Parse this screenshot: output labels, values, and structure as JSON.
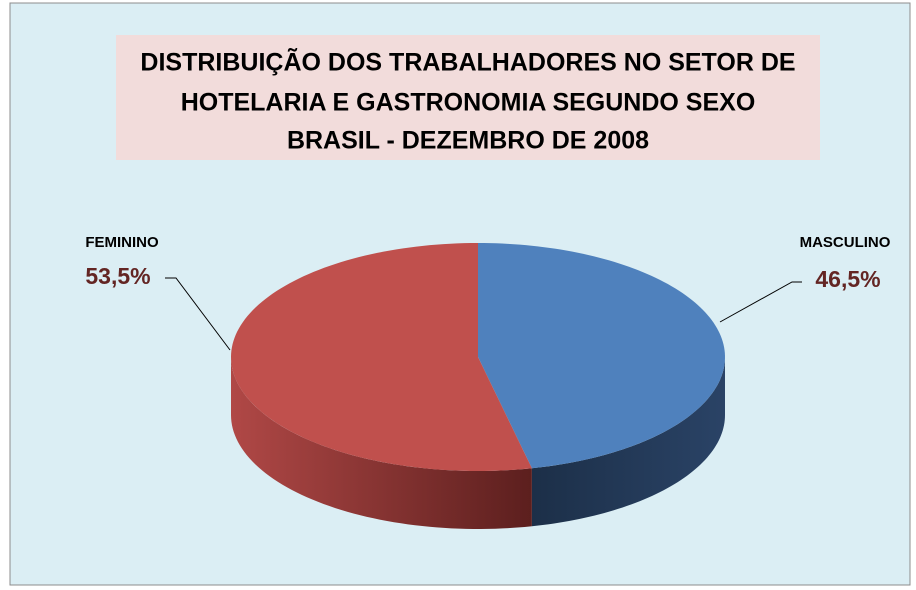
{
  "chart_data": {
    "type": "pie",
    "title": [
      "DISTRIBUIÇÃO DOS TRABALHADORES NO SETOR DE",
      "HOTELARIA E GASTRONOMIA SEGUNDO SEXO",
      "BRASIL - DEZEMBRO DE 2008"
    ],
    "categories": [
      "MASCULINO",
      "FEMININO"
    ],
    "values": [
      46.5,
      53.5
    ],
    "value_labels": [
      "46,5%",
      "53,5%"
    ],
    "colors": [
      "#4f81bd",
      "#c0504d"
    ]
  }
}
